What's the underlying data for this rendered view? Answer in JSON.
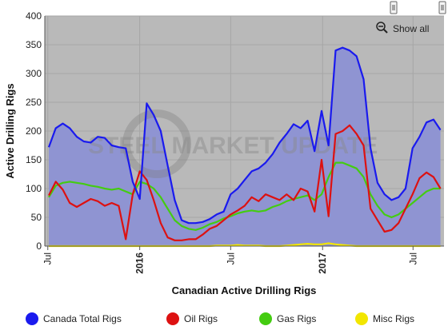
{
  "chart_data": {
    "type": "area",
    "title": "",
    "xlabel": "Canadian Active Drilling Rigs",
    "ylabel": "Active Drilling Rigs",
    "ylim": [
      0,
      400
    ],
    "yticks": [
      0,
      50,
      100,
      150,
      200,
      250,
      300,
      350,
      400
    ],
    "x_tick_labels": [
      {
        "label": "Jul",
        "x": "2015-07",
        "bold": false
      },
      {
        "label": "2016",
        "x": "2016-01",
        "bold": true
      },
      {
        "label": "Jul",
        "x": "2016-07",
        "bold": false
      },
      {
        "label": "2017",
        "x": "2017-01",
        "bold": true
      },
      {
        "label": "Jul",
        "x": "2017-07",
        "bold": false
      }
    ],
    "x": [
      "2015-07-03",
      "2015-07-17",
      "2015-07-31",
      "2015-08-14",
      "2015-08-28",
      "2015-09-11",
      "2015-09-25",
      "2015-10-09",
      "2015-10-23",
      "2015-11-06",
      "2015-11-20",
      "2015-12-04",
      "2015-12-18",
      "2016-01-01",
      "2016-01-15",
      "2016-01-29",
      "2016-02-12",
      "2016-02-26",
      "2016-03-11",
      "2016-03-25",
      "2016-04-08",
      "2016-04-22",
      "2016-05-06",
      "2016-05-20",
      "2016-06-03",
      "2016-06-17",
      "2016-07-01",
      "2016-07-15",
      "2016-07-29",
      "2016-08-12",
      "2016-08-26",
      "2016-09-09",
      "2016-09-23",
      "2016-10-07",
      "2016-10-21",
      "2016-11-04",
      "2016-11-18",
      "2016-12-02",
      "2016-12-16",
      "2016-12-30",
      "2017-01-13",
      "2017-01-27",
      "2017-02-10",
      "2017-02-24",
      "2017-03-10",
      "2017-03-24",
      "2017-04-07",
      "2017-04-21",
      "2017-05-05",
      "2017-05-19",
      "2017-06-02",
      "2017-06-16",
      "2017-06-30",
      "2017-07-14",
      "2017-07-28",
      "2017-08-11",
      "2017-08-25"
    ],
    "series": [
      {
        "name": "Canada Total Rigs",
        "color": "#1a1aee",
        "fill": "#8f94d2",
        "values": [
          172,
          205,
          213,
          205,
          190,
          182,
          180,
          190,
          188,
          175,
          172,
          170,
          112,
          82,
          248,
          228,
          200,
          140,
          80,
          45,
          40,
          40,
          42,
          47,
          55,
          60,
          90,
          100,
          115,
          130,
          135,
          145,
          160,
          180,
          195,
          212,
          205,
          218,
          165,
          235,
          175,
          340,
          345,
          340,
          330,
          290,
          170,
          110,
          90,
          80,
          85,
          100,
          170,
          190,
          215,
          220,
          202
        ]
      },
      {
        "name": "Oil Rigs",
        "color": "#dd1111",
        "values": [
          88,
          112,
          98,
          75,
          68,
          75,
          82,
          78,
          70,
          75,
          70,
          12,
          90,
          130,
          115,
          80,
          40,
          15,
          10,
          10,
          12,
          12,
          20,
          30,
          35,
          45,
          55,
          62,
          70,
          85,
          78,
          90,
          85,
          80,
          90,
          80,
          100,
          95,
          60,
          150,
          52,
          195,
          200,
          210,
          195,
          175,
          65,
          45,
          25,
          28,
          40,
          65,
          90,
          118,
          128,
          120,
          100
        ]
      },
      {
        "name": "Gas Rigs",
        "color": "#44cc11",
        "values": [
          85,
          105,
          110,
          112,
          110,
          108,
          105,
          103,
          100,
          98,
          100,
          95,
          90,
          112,
          108,
          100,
          85,
          65,
          45,
          35,
          30,
          28,
          32,
          38,
          42,
          48,
          52,
          57,
          60,
          62,
          60,
          62,
          68,
          72,
          78,
          82,
          85,
          88,
          80,
          90,
          120,
          145,
          145,
          140,
          135,
          120,
          90,
          70,
          55,
          50,
          55,
          65,
          75,
          85,
          95,
          100,
          100
        ]
      },
      {
        "name": "Misc Rigs",
        "color": "#f2e600",
        "values": [
          0,
          0,
          0,
          0,
          0,
          0,
          0,
          0,
          0,
          0,
          0,
          0,
          0,
          0,
          0,
          0,
          0,
          0,
          0,
          0,
          0,
          0,
          0,
          0,
          1,
          1,
          1,
          2,
          1,
          1,
          1,
          0,
          0,
          0,
          1,
          2,
          3,
          4,
          3,
          3,
          5,
          3,
          2,
          1,
          0,
          0,
          0,
          0,
          0,
          0,
          0,
          0,
          0,
          0,
          0,
          0,
          0
        ]
      }
    ],
    "legend_position": "bottom",
    "grid": true
  },
  "ui": {
    "show_all_label": "Show all",
    "watermark": "STEEL MARKET UPDATE"
  }
}
